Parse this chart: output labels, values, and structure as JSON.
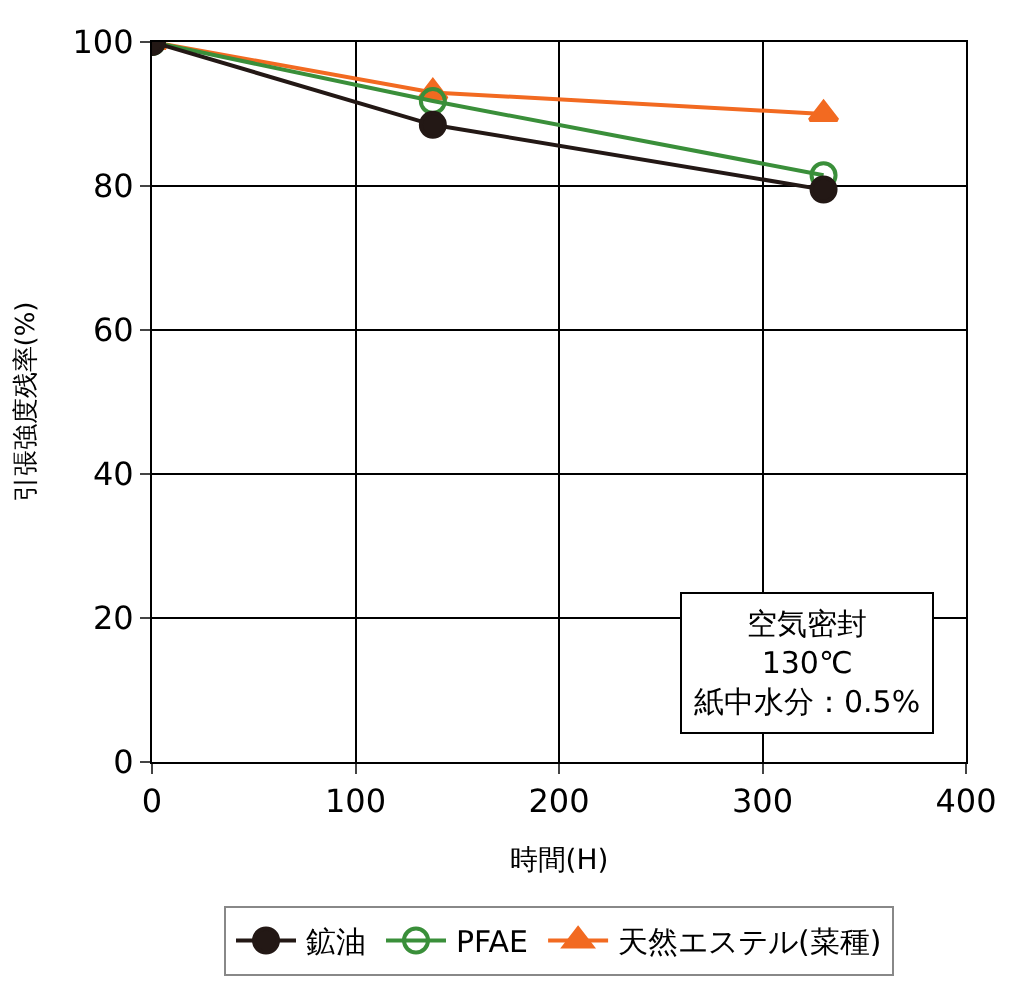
{
  "chart_data": {
    "type": "line",
    "xlabel": "時間(H)",
    "ylabel": "引張強度残率(%)",
    "x": [
      0,
      138,
      330
    ],
    "series": [
      {
        "name": "鉱油",
        "color": "#231815",
        "values": [
          100,
          88.5,
          79.5
        ],
        "marker": "circle"
      },
      {
        "name": "PFAE",
        "color": "#3a8f3a",
        "values": [
          100,
          91.8,
          81.5
        ],
        "marker": "circle-open"
      },
      {
        "name": "天然エステル(菜種)",
        "color": "#f26a21",
        "values": [
          100,
          93,
          90
        ],
        "marker": "triangle"
      }
    ],
    "xlim": [
      0,
      400
    ],
    "xticks": [
      0,
      100,
      200,
      300,
      400
    ],
    "ylim": [
      0,
      100
    ],
    "yticks": [
      0,
      20,
      40,
      60,
      80,
      100
    ],
    "grid": true,
    "legend": "bottom",
    "annotations": [
      "空気密封\n130℃\n紙中水分：0.5%"
    ]
  }
}
